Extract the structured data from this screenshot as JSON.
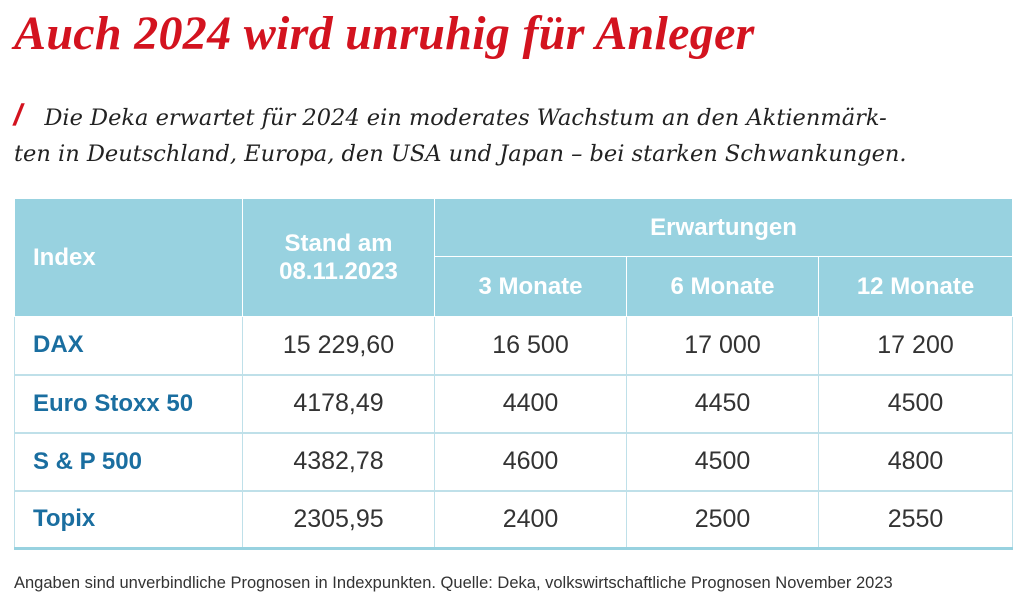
{
  "title": "Auch 2024 wird unruhig für Anleger",
  "lead": {
    "slash": "/",
    "line1": "Die Deka erwartet für 2024 ein moderates Wachstum an den Aktienmärk-",
    "line2": "ten in Deutschland, Europa, den USA und Japan – bei starken Schwankungen."
  },
  "table": {
    "header": {
      "index": "Index",
      "stand_line1": "Stand am",
      "stand_line2": "08.11.2023",
      "expectations": "Erwartungen",
      "m3": "3 Monate",
      "m6": "6 Monate",
      "m12": "12 Monate"
    },
    "rows": [
      {
        "name": "DAX",
        "stand": "15 229,60",
        "m3": "16 500",
        "m6": "17 000",
        "m12": "17 200"
      },
      {
        "name": "Euro Stoxx 50",
        "stand": "4178,49",
        "m3": "4400",
        "m6": "4450",
        "m12": "4500"
      },
      {
        "name": "S & P 500",
        "stand": "4382,78",
        "m3": "4600",
        "m6": "4500",
        "m12": "4800"
      },
      {
        "name": "Topix",
        "stand": "2305,95",
        "m3": "2400",
        "m6": "2500",
        "m12": "2550"
      }
    ]
  },
  "footnote": "Angaben sind unverbindliche Prognosen in Indexpunkten. Quelle: Deka, volkswirtschaftliche Prognosen November 2023",
  "colors": {
    "accent_red": "#d3131f",
    "header_blue": "#98d2e0",
    "index_blue": "#1a6ea0"
  }
}
